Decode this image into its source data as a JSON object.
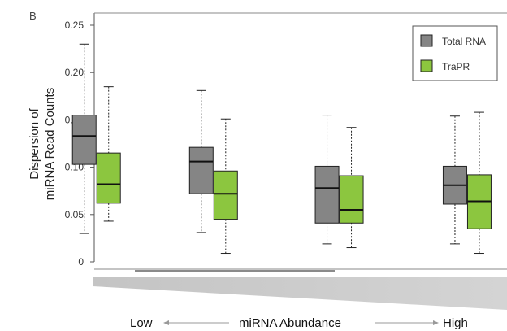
{
  "panel_label": "B",
  "chart_data": {
    "type": "box",
    "title": "",
    "ylabel_lines": [
      "Dispersion of",
      "miRNA Read Counts"
    ],
    "yticks": [
      0,
      0.05,
      0.1,
      0.15,
      0.2,
      0.25
    ],
    "ytick_labels": [
      "0",
      "0.05",
      "0.10",
      "0.15",
      "0.20",
      "0.25"
    ],
    "ylim": [
      0,
      0.25
    ],
    "grid": false,
    "legend_position": "top-right",
    "xaxis": {
      "low_label": "Low",
      "center_label": "miRNA Abundance",
      "high_label": "High"
    },
    "series": [
      {
        "name": "Total RNA",
        "color": "#858585",
        "boxes": [
          {
            "min": 0.03,
            "q1": 0.103,
            "median": 0.133,
            "q3": 0.155,
            "max": 0.23
          },
          {
            "min": 0.031,
            "q1": 0.072,
            "median": 0.106,
            "q3": 0.121,
            "max": 0.181
          },
          {
            "min": 0.019,
            "q1": 0.041,
            "median": 0.078,
            "q3": 0.101,
            "max": 0.155
          },
          {
            "min": 0.019,
            "q1": 0.061,
            "median": 0.081,
            "q3": 0.101,
            "max": 0.154
          }
        ]
      },
      {
        "name": "TraPR",
        "color": "#8cc63f",
        "boxes": [
          {
            "min": 0.043,
            "q1": 0.062,
            "median": 0.082,
            "q3": 0.115,
            "max": 0.185
          },
          {
            "min": 0.009,
            "q1": 0.045,
            "median": 0.072,
            "q3": 0.096,
            "max": 0.151
          },
          {
            "min": 0.015,
            "q1": 0.041,
            "median": 0.055,
            "q3": 0.091,
            "max": 0.142
          },
          {
            "min": 0.009,
            "q1": 0.035,
            "median": 0.064,
            "q3": 0.092,
            "max": 0.158
          }
        ]
      }
    ]
  }
}
